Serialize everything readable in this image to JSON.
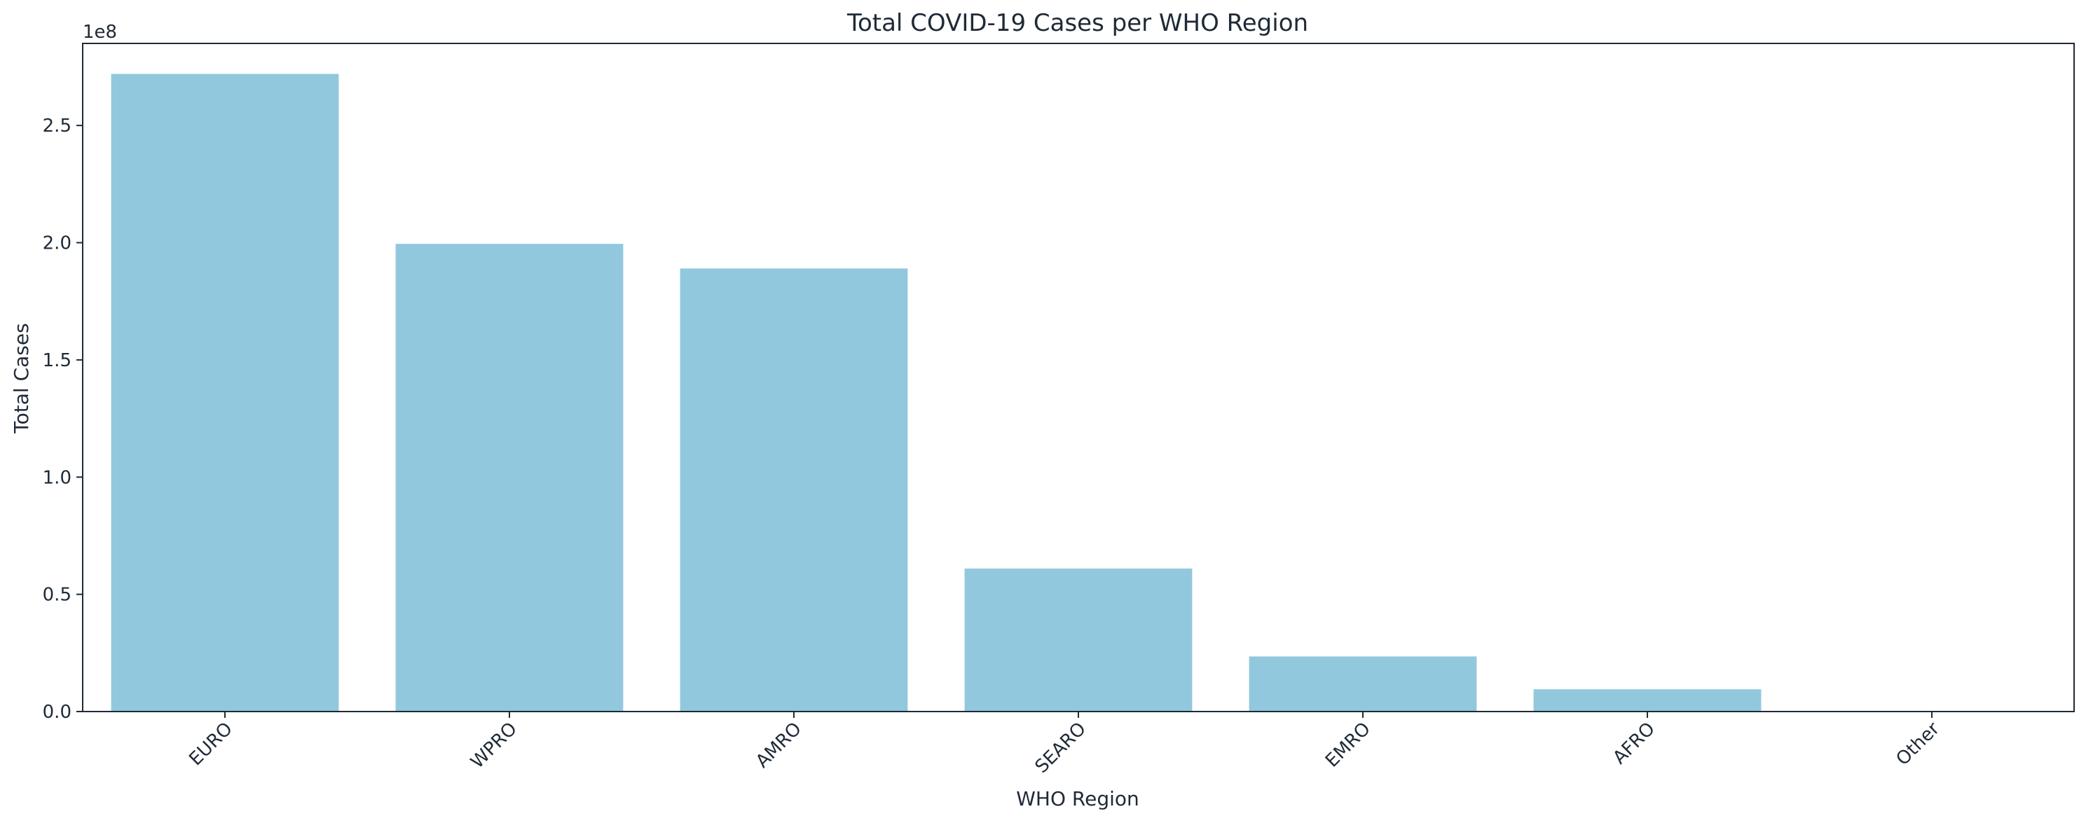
{
  "chart_data": {
    "type": "bar",
    "title": "Total COVID-19 Cases per WHO Region",
    "xlabel": "WHO Region",
    "ylabel": "Total Cases",
    "y_offset_label": "1e8",
    "categories": [
      "EURO",
      "WPRO",
      "AMRO",
      "SEARO",
      "EMRO",
      "AFRO",
      "Other"
    ],
    "values": [
      272000000,
      199500000,
      189000000,
      61000000,
      23500000,
      9500000,
      0
    ],
    "ylim": [
      0,
      285000000
    ],
    "y_ticks": [
      0,
      50000000,
      100000000,
      150000000,
      200000000,
      250000000
    ],
    "y_tick_labels": [
      "0.0",
      "0.5",
      "1.0",
      "1.5",
      "2.0",
      "2.5"
    ],
    "x_tick_rotation_deg": -45,
    "grid": false,
    "bar_color": "#92c8de",
    "axis_color": "#1f2a37"
  }
}
